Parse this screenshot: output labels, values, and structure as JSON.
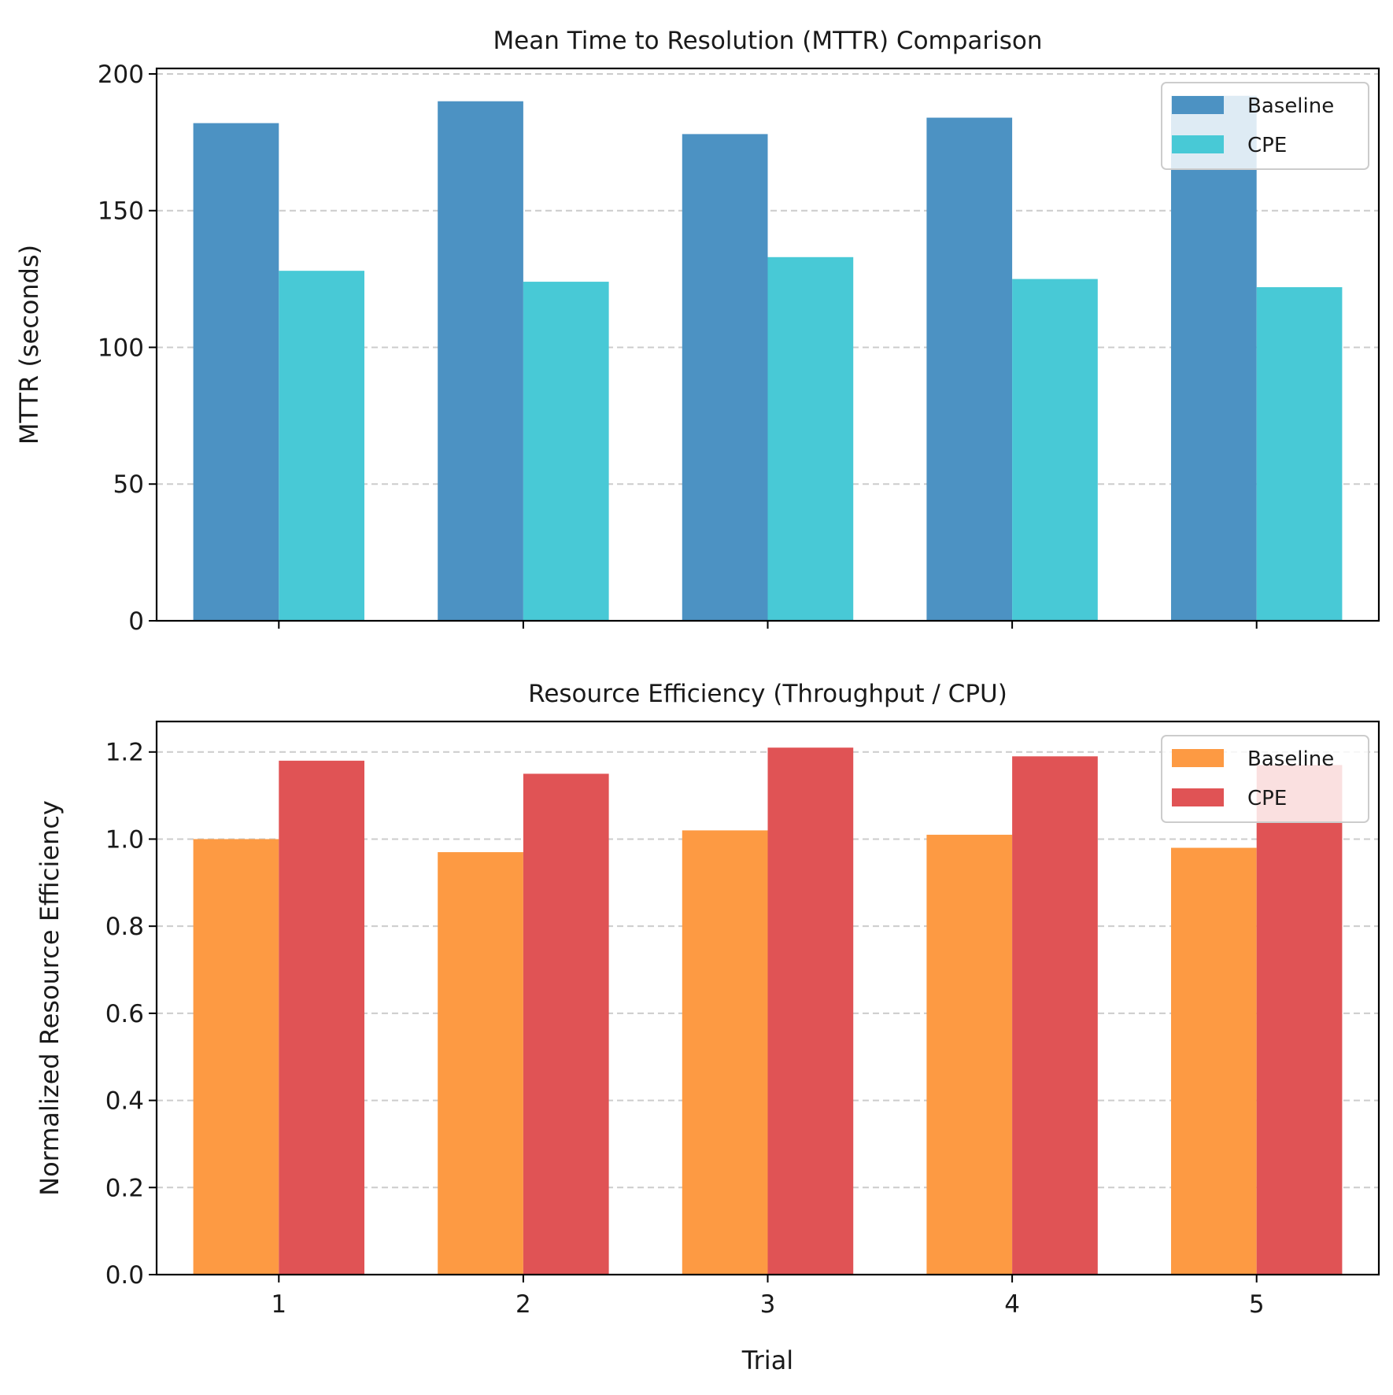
{
  "chart_data": [
    {
      "type": "bar",
      "title": "Mean Time to Resolution (MTTR) Comparison",
      "xlabel": "",
      "ylabel": "MTTR (seconds)",
      "categories": [
        "1",
        "2",
        "3",
        "4",
        "5"
      ],
      "ylim": [
        0,
        202
      ],
      "yticks": [
        0,
        50,
        100,
        150,
        200
      ],
      "ytick_labels": [
        "0",
        "50",
        "100",
        "150",
        "200"
      ],
      "show_xtick_labels": false,
      "grid": "y dashed",
      "legend_position": "top-right",
      "series": [
        {
          "name": "Baseline",
          "color": "#4c92c3",
          "values": [
            182,
            190,
            178,
            184,
            192
          ]
        },
        {
          "name": "CPE",
          "color": "#48c9d6",
          "values": [
            128,
            124,
            133,
            125,
            122
          ]
        }
      ]
    },
    {
      "type": "bar",
      "title": "Resource Efficiency (Throughput / CPU)",
      "xlabel": "Trial",
      "ylabel": "Normalized Resource Efficiency",
      "categories": [
        "1",
        "2",
        "3",
        "4",
        "5"
      ],
      "ylim": [
        0,
        1.27
      ],
      "yticks": [
        0,
        0.2,
        0.4,
        0.6,
        0.8,
        1.0,
        1.2
      ],
      "ytick_labels": [
        "0.0",
        "0.2",
        "0.4",
        "0.6",
        "0.8",
        "1.0",
        "1.2"
      ],
      "show_xtick_labels": true,
      "grid": "y dashed",
      "legend_position": "top-right",
      "series": [
        {
          "name": "Baseline",
          "color": "#fd9a43",
          "values": [
            1.0,
            0.97,
            1.02,
            1.01,
            0.98
          ]
        },
        {
          "name": "CPE",
          "color": "#e05355",
          "values": [
            1.18,
            1.15,
            1.21,
            1.19,
            1.17
          ]
        }
      ]
    }
  ]
}
